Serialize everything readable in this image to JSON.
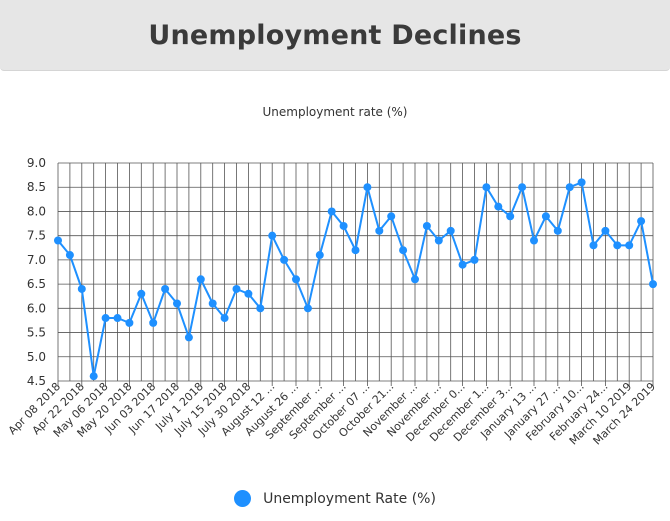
{
  "header": {
    "title": "Unemployment Declines"
  },
  "chart_data": {
    "type": "line",
    "title": "Unemployment rate (%)",
    "xlabel": "",
    "ylabel": "",
    "ylim": [
      4.5,
      9.0
    ],
    "yticks": [
      "4.5",
      "5.0",
      "5.5",
      "6.0",
      "6.5",
      "7.0",
      "7.5",
      "8.0",
      "8.5",
      "9.0"
    ],
    "grid": true,
    "legend_position": "bottom",
    "color": "#1e90ff",
    "xtick_labels": [
      "Apr 08 2018",
      "Apr 22 2018",
      "May 06 2018",
      "May 20 2018",
      "Jun 03 2018",
      "Jun 17 2018",
      "July 1 2018",
      "July 15 2018",
      "July 30 2018",
      "August 12 ...",
      "August 26 ...",
      "September ...",
      "September ...",
      "October 07 ...",
      "October 21...",
      "November ...",
      "November ...",
      "December 0...",
      "December 1...",
      "December 3...",
      "January 13 ...",
      "January 27 ...",
      "February 10...",
      "February 24...",
      "March 10 2019",
      "March 24 2019"
    ],
    "series": [
      {
        "name": "Unemployment Rate (%)",
        "values": [
          7.4,
          7.1,
          6.4,
          4.6,
          5.8,
          5.8,
          5.7,
          6.3,
          5.7,
          6.4,
          6.1,
          5.4,
          6.6,
          6.1,
          5.8,
          6.4,
          6.3,
          6.0,
          7.5,
          7.0,
          6.6,
          6.0,
          7.1,
          8.0,
          7.7,
          7.2,
          8.5,
          7.6,
          7.9,
          7.2,
          6.6,
          7.7,
          7.4,
          7.6,
          6.9,
          7.0,
          8.5,
          8.1,
          7.9,
          8.5,
          7.4,
          7.9,
          7.6,
          8.5,
          8.6,
          7.3,
          7.6,
          7.3,
          7.3,
          7.8,
          6.5
        ]
      }
    ]
  }
}
